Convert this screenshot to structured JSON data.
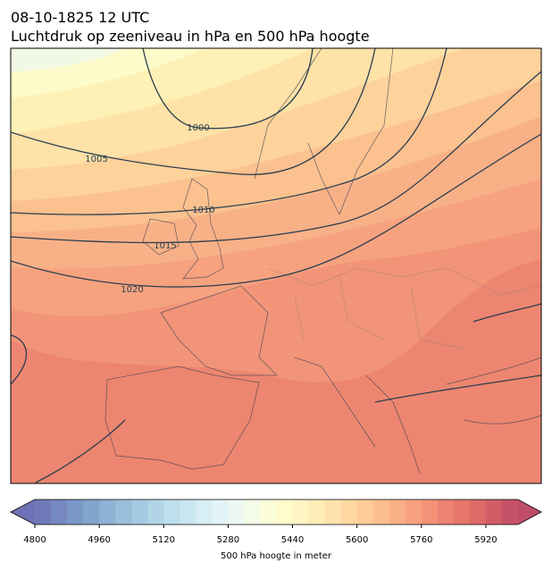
{
  "header": {
    "title": "08-10-1825 12 UTC",
    "subtitle": "Luchtdruk op zeeniveau in hPa en 500 hPa hoogte"
  },
  "isobars": [
    1000,
    1005,
    1010,
    1015,
    1020
  ],
  "colorbar": {
    "lim": [
      4800,
      6000
    ],
    "ticks": [
      4800,
      4960,
      5120,
      5280,
      5440,
      5600,
      5760,
      5920
    ],
    "segments": 30,
    "cmap": [
      "#313695",
      "#4575b4",
      "#74add1",
      "#abd9e9",
      "#e0f3f8",
      "#ffffbf",
      "#fee090",
      "#fdae61",
      "#f46d43",
      "#d73027",
      "#a50026"
    ],
    "alpha": 0.7,
    "label": "500 hPa hoogte in meter"
  }
}
